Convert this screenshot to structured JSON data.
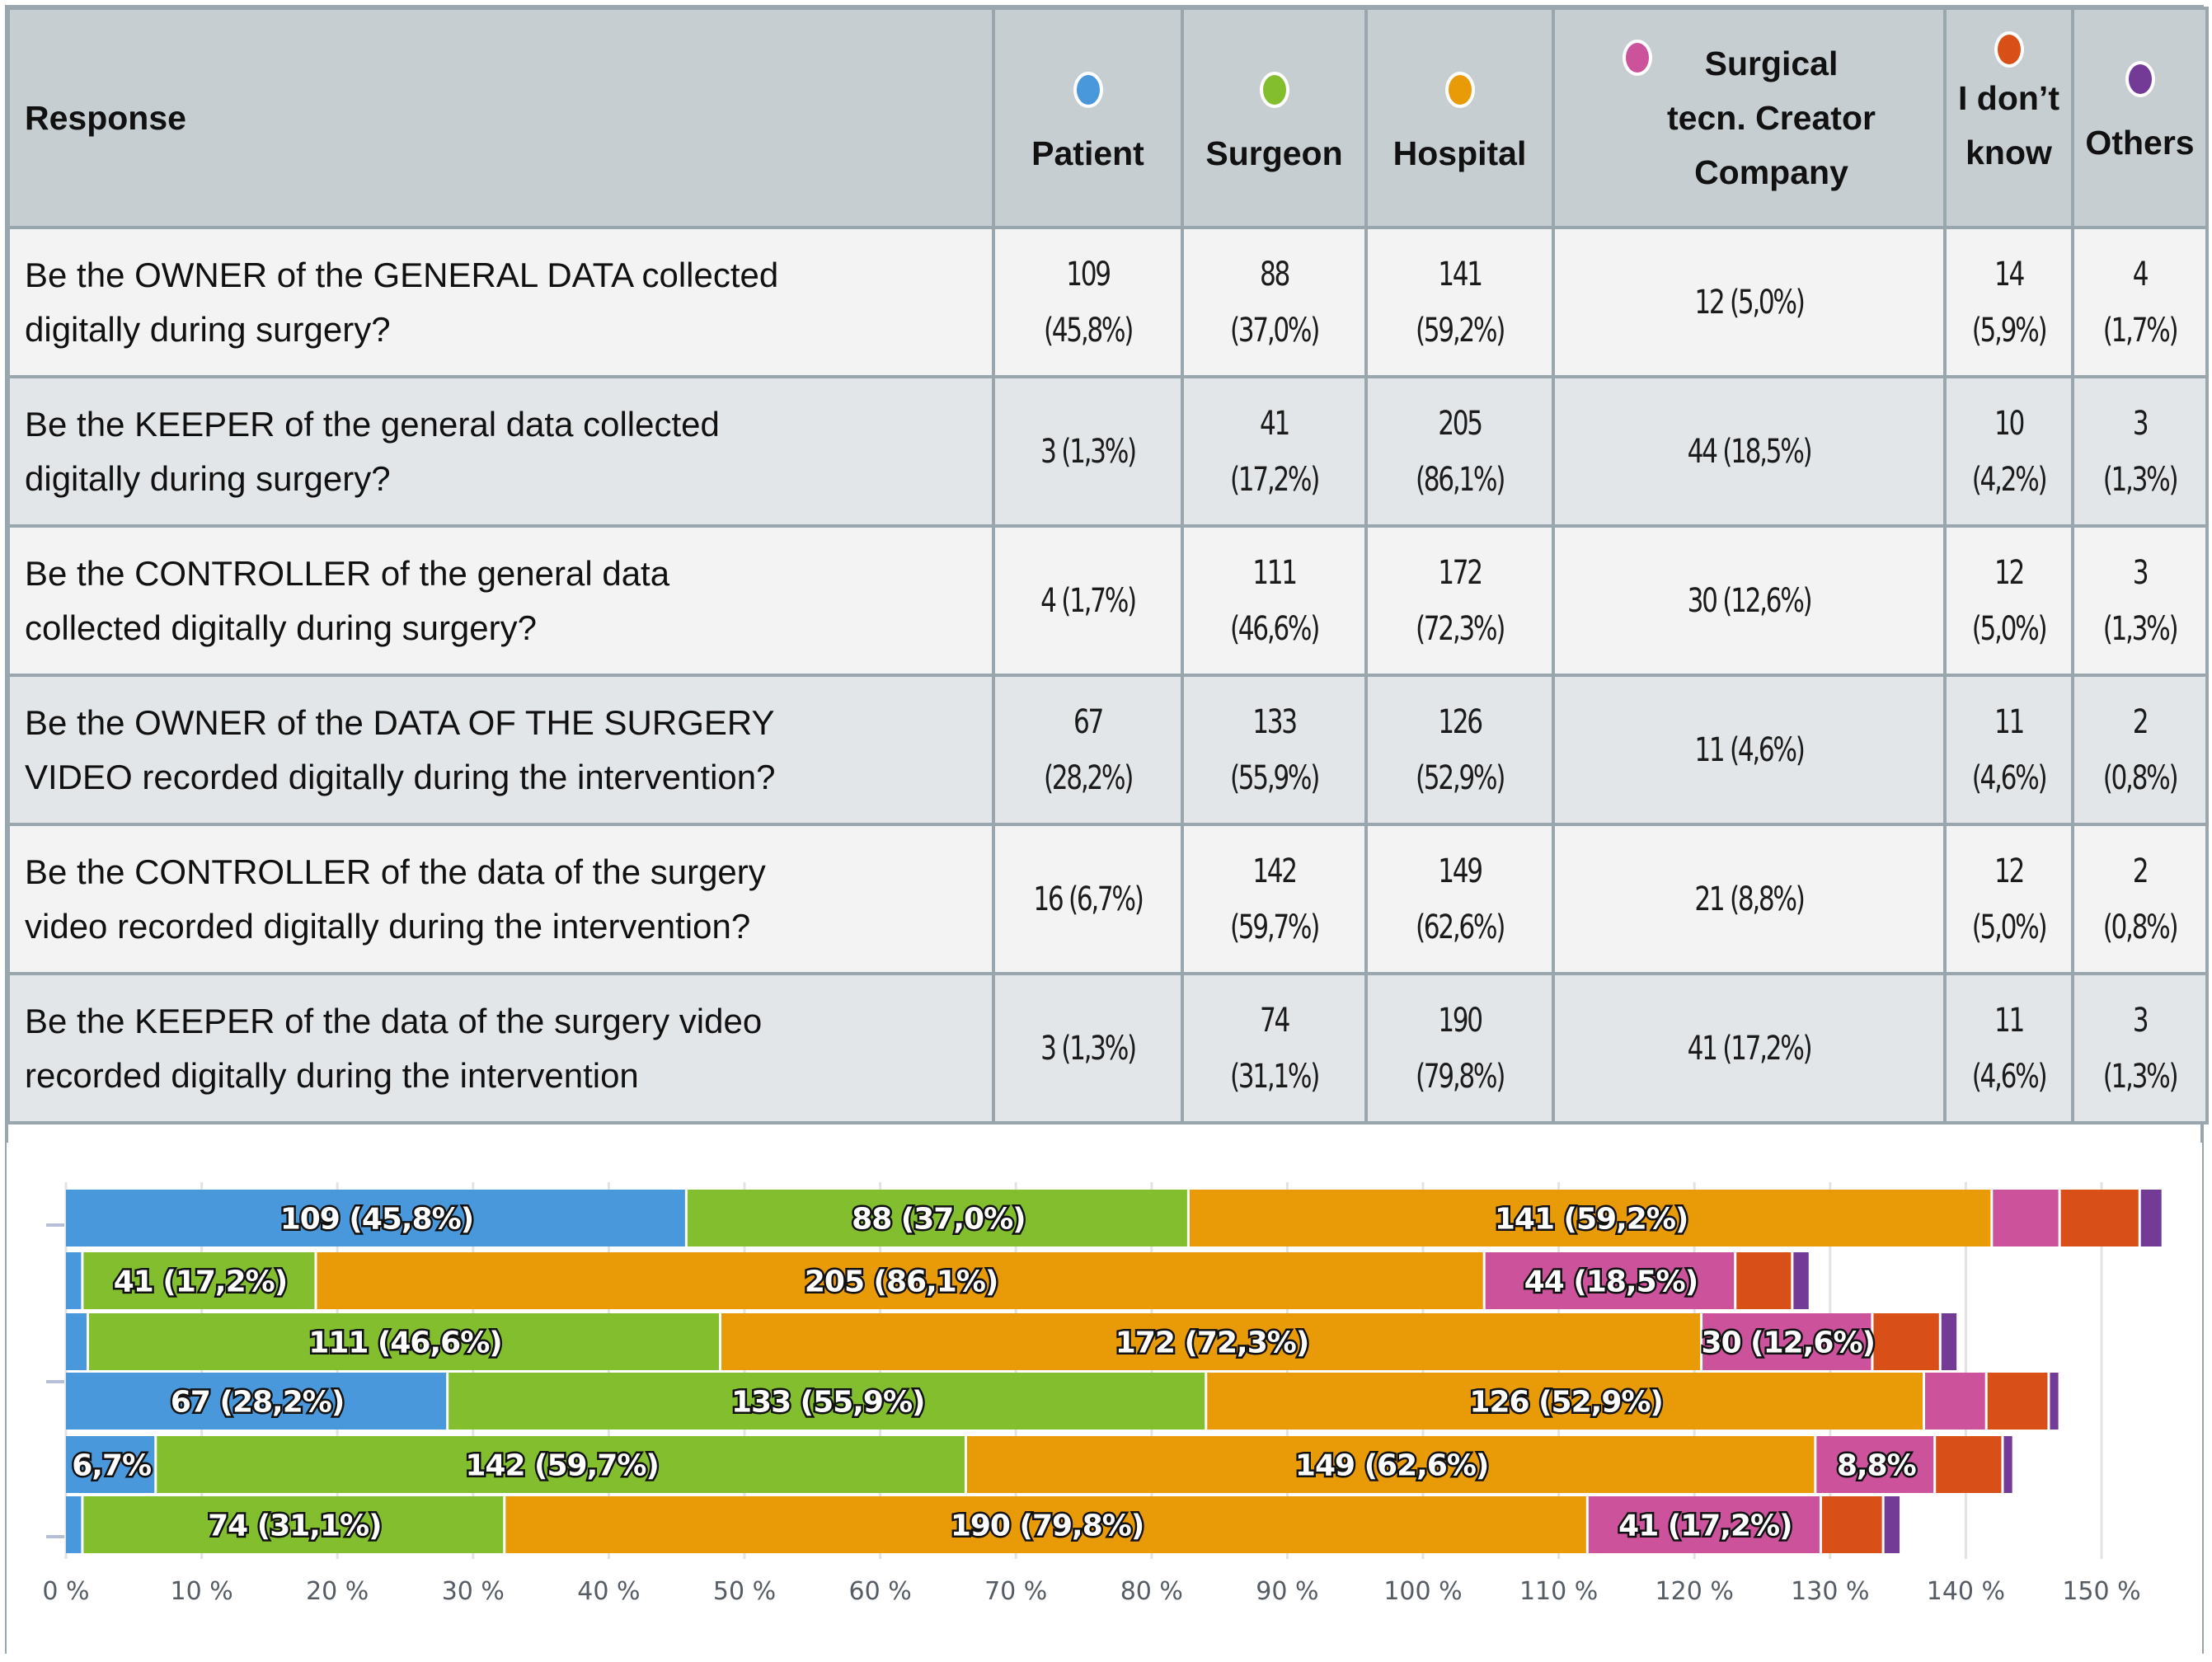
{
  "table": {
    "header": {
      "response": "Response",
      "columns": [
        {
          "key": "patient",
          "label_lines": [
            "Patient"
          ],
          "color": "#4a98dc",
          "layout": "stack"
        },
        {
          "key": "surgeon",
          "label_lines": [
            "Surgeon"
          ],
          "color": "#82be2e",
          "layout": "stack"
        },
        {
          "key": "hospital",
          "label_lines": [
            "Hospital"
          ],
          "color": "#e89a07",
          "layout": "stack"
        },
        {
          "key": "company",
          "label_lines": [
            "Surgical",
            "tecn. Creator",
            "Company"
          ],
          "color": "#cc529b",
          "layout": "inline"
        },
        {
          "key": "dont_know",
          "label_lines": [
            "I don’t",
            "know"
          ],
          "color": "#d84f18",
          "layout": "stack-top"
        },
        {
          "key": "others",
          "label_lines": [
            "Others"
          ],
          "color": "#743b96",
          "layout": "stack"
        }
      ]
    },
    "rows": [
      {
        "question_lines": [
          "Be the OWNER of the GENERAL DATA collected",
          "digitally during surgery?"
        ],
        "cells": [
          [
            "109",
            "(45,8%)"
          ],
          [
            "88",
            "(37,0%)"
          ],
          [
            "141",
            "(59,2%)"
          ],
          [
            "12 (5,0%)"
          ],
          [
            "14",
            "(5,9%)"
          ],
          [
            "4",
            "(1,7%)"
          ]
        ]
      },
      {
        "question_lines": [
          "Be the KEEPER of the general data collected",
          "digitally during surgery?"
        ],
        "cells": [
          [
            "3 (1,3%)"
          ],
          [
            "41",
            "(17,2%)"
          ],
          [
            "205",
            "(86,1%)"
          ],
          [
            "44 (18,5%)"
          ],
          [
            "10",
            "(4,2%)"
          ],
          [
            "3",
            "(1,3%)"
          ]
        ]
      },
      {
        "question_lines": [
          "Be the CONTROLLER of the general data",
          "collected digitally during surgery?"
        ],
        "cells": [
          [
            "4 (1,7%)"
          ],
          [
            "111",
            "(46,6%)"
          ],
          [
            "172",
            "(72,3%)"
          ],
          [
            "30 (12,6%)"
          ],
          [
            "12",
            "(5,0%)"
          ],
          [
            "3",
            "(1,3%)"
          ]
        ]
      },
      {
        "question_lines": [
          "Be the OWNER of the DATA OF THE SURGERY",
          "VIDEO recorded digitally during the intervention?"
        ],
        "cells": [
          [
            "67",
            "(28,2%)"
          ],
          [
            "133",
            "(55,9%)"
          ],
          [
            "126",
            "(52,9%)"
          ],
          [
            "11 (4,6%)"
          ],
          [
            "11",
            "(4,6%)"
          ],
          [
            "2",
            "(0,8%)"
          ]
        ]
      },
      {
        "question_lines": [
          "Be the CONTROLLER of the data of the surgery",
          "video recorded digitally during the intervention?"
        ],
        "cells": [
          [
            "16 (6,7%)"
          ],
          [
            "142",
            "(59,7%)"
          ],
          [
            "149",
            "(62,6%)"
          ],
          [
            "21 (8,8%)"
          ],
          [
            "12",
            "(5,0%)"
          ],
          [
            "2",
            "(0,8%)"
          ]
        ]
      },
      {
        "question_lines": [
          "Be the KEEPER of the data of the surgery video",
          "recorded digitally during the intervention"
        ],
        "cells": [
          [
            "3 (1,3%)"
          ],
          [
            "74",
            "(31,1%)"
          ],
          [
            "190",
            "(79,8%)"
          ],
          [
            "41 (17,2%)"
          ],
          [
            "11",
            "(4,6%)"
          ],
          [
            "3",
            "(1,3%)"
          ]
        ]
      }
    ]
  },
  "chart_data": {
    "type": "bar",
    "orientation": "horizontal",
    "stacked": true,
    "title": "",
    "xlabel": "",
    "ylabel": "",
    "xlim": [
      0,
      150
    ],
    "x_unit": "%",
    "x_ticks": [
      "0 %",
      "10 %",
      "20 %",
      "30 %",
      "40 %",
      "50 %",
      "60 %",
      "70 %",
      "80 %",
      "90 %",
      "100 %",
      "110 %",
      "120 %",
      "130 %",
      "140 %",
      "150 %"
    ],
    "grid": true,
    "legend": "table-header",
    "categories": [
      "OWNER of GENERAL DATA",
      "KEEPER of general data",
      "CONTROLLER of general data",
      "OWNER of SURGERY VIDEO data",
      "CONTROLLER of surgery video data",
      "KEEPER of surgery video data"
    ],
    "series": [
      {
        "name": "Patient",
        "color": "#4a98dc",
        "values": [
          45.8,
          1.3,
          1.7,
          28.2,
          6.7,
          1.3
        ],
        "counts": [
          109,
          3,
          4,
          67,
          16,
          3
        ],
        "labels": [
          "109 (45,8%)",
          "",
          "",
          "67 (28,2%)",
          "6,7%",
          ""
        ]
      },
      {
        "name": "Surgeon",
        "color": "#82be2e",
        "values": [
          37.0,
          17.2,
          46.6,
          55.9,
          59.7,
          31.1
        ],
        "counts": [
          88,
          41,
          111,
          133,
          142,
          74
        ],
        "labels": [
          "88 (37,0%)",
          "41 (17,2%)",
          "111 (46,6%)",
          "133 (55,9%)",
          "142 (59,7%)",
          "74 (31,1%)"
        ]
      },
      {
        "name": "Hospital",
        "color": "#e89a07",
        "values": [
          59.2,
          86.1,
          72.3,
          52.9,
          62.6,
          79.8
        ],
        "counts": [
          141,
          205,
          172,
          126,
          149,
          190
        ],
        "labels": [
          "141 (59,2%)",
          "205 (86,1%)",
          "172 (72,3%)",
          "126 (52,9%)",
          "149 (62,6%)",
          "190 (79,8%)"
        ]
      },
      {
        "name": "Surgical tecn. Creator Company",
        "color": "#cc529b",
        "values": [
          5.0,
          18.5,
          12.6,
          4.6,
          8.8,
          17.2
        ],
        "counts": [
          12,
          44,
          30,
          11,
          21,
          41
        ],
        "labels": [
          "",
          "44 (18,5%)",
          "30 (12,6%)",
          "",
          "8,8%",
          "41 (17,2%)"
        ]
      },
      {
        "name": "I don’t know",
        "color": "#d84f18",
        "values": [
          5.9,
          4.2,
          5.0,
          4.6,
          5.0,
          4.6
        ],
        "counts": [
          14,
          10,
          12,
          11,
          12,
          11
        ],
        "labels": [
          "",
          "",
          "",
          "",
          "",
          ""
        ]
      },
      {
        "name": "Others",
        "color": "#743b96",
        "values": [
          1.7,
          1.3,
          1.3,
          0.8,
          0.8,
          1.3
        ],
        "counts": [
          4,
          3,
          3,
          2,
          2,
          3
        ],
        "labels": [
          "",
          "",
          "",
          "",
          "",
          ""
        ]
      }
    ]
  }
}
